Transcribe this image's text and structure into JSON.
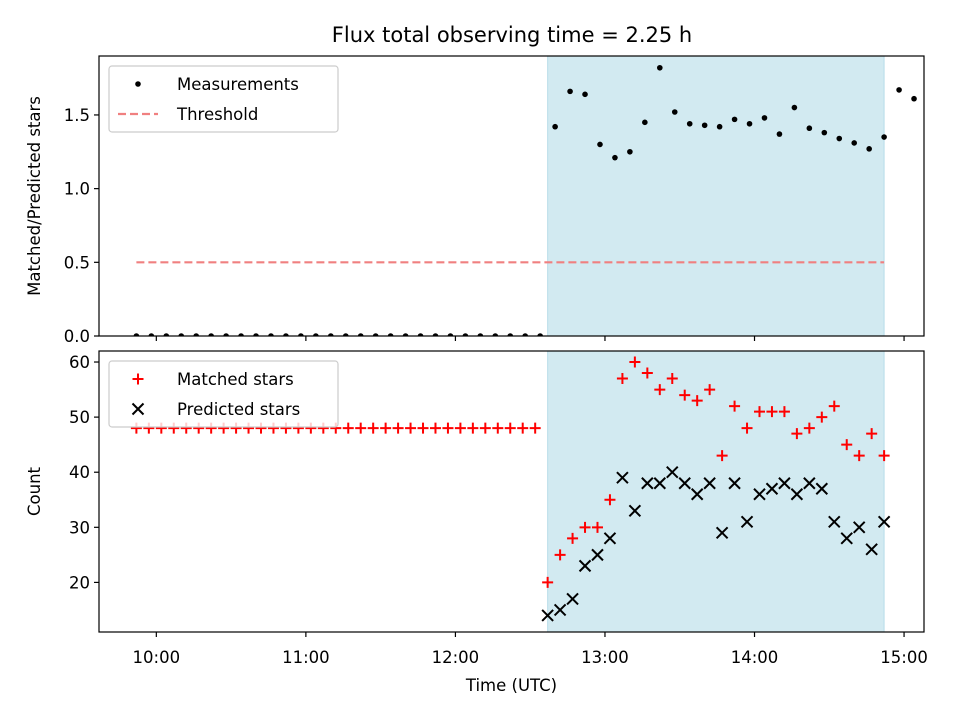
{
  "title": "Flux total observing time = 2.25 h",
  "chart_data": [
    {
      "type": "scatter",
      "panel": "top",
      "ylabel": "Matched/Predicted stars",
      "xlabel": "",
      "ylim": [
        0,
        1.9
      ],
      "yticks": [
        0,
        0.5,
        1.0,
        1.5
      ],
      "ytick_labels": [
        "0.0",
        "0.5",
        "1.0",
        "1.5"
      ],
      "xlim": [
        "09:37",
        "15:08"
      ],
      "xticks": [
        "10:00",
        "11:00",
        "12:00",
        "13:00",
        "14:00",
        "15:00"
      ],
      "shaded_region": {
        "start": "12:37",
        "end": "14:52",
        "color": "#add8e6"
      },
      "legend_position": "upper-left",
      "series": [
        {
          "name": "Measurements",
          "marker": "dot",
          "color": "#000000",
          "x": [
            "09:52",
            "09:58",
            "10:04",
            "10:10",
            "10:16",
            "10:22",
            "10:28",
            "10:34",
            "10:40",
            "10:46",
            "10:52",
            "10:58",
            "11:04",
            "11:10",
            "11:16",
            "11:22",
            "11:28",
            "11:34",
            "11:40",
            "11:46",
            "11:52",
            "11:58",
            "12:04",
            "12:10",
            "12:16",
            "12:22",
            "12:28",
            "12:34",
            "12:40",
            "12:46",
            "12:52",
            "12:58",
            "13:04",
            "13:10",
            "13:16",
            "13:22",
            "13:28",
            "13:34",
            "13:40",
            "13:46",
            "13:52",
            "13:58",
            "14:04",
            "14:10",
            "14:16",
            "14:22",
            "14:28",
            "14:34",
            "14:40",
            "14:46",
            "14:52",
            "14:58",
            "15:04"
          ],
          "values": [
            0,
            0,
            0,
            0,
            0,
            0,
            0,
            0,
            0,
            0,
            0,
            0,
            0,
            0,
            0,
            0,
            0,
            0,
            0,
            0,
            0,
            0,
            0,
            0,
            0,
            0,
            0,
            0,
            1.42,
            1.66,
            1.64,
            1.3,
            1.21,
            1.25,
            1.45,
            1.82,
            1.52,
            1.44,
            1.43,
            1.42,
            1.47,
            1.44,
            1.48,
            1.37,
            1.55,
            1.41,
            1.38,
            1.34,
            1.31,
            1.27,
            1.35,
            1.67,
            1.61
          ]
        },
        {
          "name": "Threshold",
          "marker": "dashed-line",
          "color": "#f08080",
          "x": [
            "09:52",
            "14:52"
          ],
          "values": [
            0.5,
            0.5
          ]
        }
      ]
    },
    {
      "type": "scatter",
      "panel": "bottom",
      "ylabel": "Count",
      "xlabel": "Time (UTC)",
      "ylim": [
        11,
        62
      ],
      "yticks": [
        20,
        30,
        40,
        50,
        60
      ],
      "xlim": [
        "09:37",
        "15:08"
      ],
      "xticks": [
        "10:00",
        "11:00",
        "12:00",
        "13:00",
        "14:00",
        "15:00"
      ],
      "shaded_region": {
        "start": "12:37",
        "end": "14:52",
        "color": "#add8e6"
      },
      "legend_position": "upper-left",
      "series": [
        {
          "name": "Matched stars",
          "marker": "plus",
          "color": "#ff0000",
          "x": [
            "09:52",
            "09:57",
            "10:02",
            "10:07",
            "10:12",
            "10:17",
            "10:22",
            "10:27",
            "10:32",
            "10:37",
            "10:42",
            "10:47",
            "10:52",
            "10:57",
            "11:02",
            "11:07",
            "11:12",
            "11:17",
            "11:22",
            "11:27",
            "11:32",
            "11:37",
            "11:42",
            "11:47",
            "11:52",
            "11:57",
            "12:02",
            "12:07",
            "12:12",
            "12:17",
            "12:22",
            "12:27",
            "12:32",
            "12:37",
            "12:42",
            "12:47",
            "12:52",
            "12:57",
            "13:02",
            "13:07",
            "13:12",
            "13:17",
            "13:22",
            "13:27",
            "13:32",
            "13:37",
            "13:42",
            "13:47",
            "13:52",
            "13:57",
            "14:02",
            "14:07",
            "14:12",
            "14:17",
            "14:22",
            "14:27",
            "14:32",
            "14:37",
            "14:42",
            "14:47",
            "14:52"
          ],
          "values": [
            48,
            48,
            48,
            48,
            48,
            48,
            48,
            48,
            48,
            48,
            48,
            48,
            48,
            48,
            48,
            48,
            48,
            48,
            48,
            48,
            48,
            48,
            48,
            48,
            48,
            48,
            48,
            48,
            48,
            48,
            48,
            48,
            48,
            20,
            25,
            28,
            30,
            30,
            35,
            57,
            60,
            58,
            55,
            57,
            54,
            53,
            55,
            43,
            52,
            48,
            51,
            51,
            51,
            47,
            48,
            50,
            52,
            45,
            43,
            47,
            43
          ]
        },
        {
          "name": "Predicted stars",
          "marker": "x",
          "color": "#000000",
          "x": [
            "12:37",
            "12:42",
            "12:47",
            "12:52",
            "12:57",
            "13:02",
            "13:07",
            "13:12",
            "13:17",
            "13:22",
            "13:27",
            "13:32",
            "13:37",
            "13:42",
            "13:47",
            "13:52",
            "13:57",
            "14:02",
            "14:07",
            "14:12",
            "14:17",
            "14:22",
            "14:27",
            "14:32",
            "14:37",
            "14:42",
            "14:47",
            "14:52"
          ],
          "values": [
            14,
            15,
            17,
            23,
            25,
            28,
            39,
            33,
            38,
            38,
            40,
            38,
            36,
            38,
            29,
            38,
            31,
            36,
            37,
            38,
            36,
            38,
            37,
            31,
            28,
            30,
            26,
            31
          ]
        }
      ]
    }
  ]
}
